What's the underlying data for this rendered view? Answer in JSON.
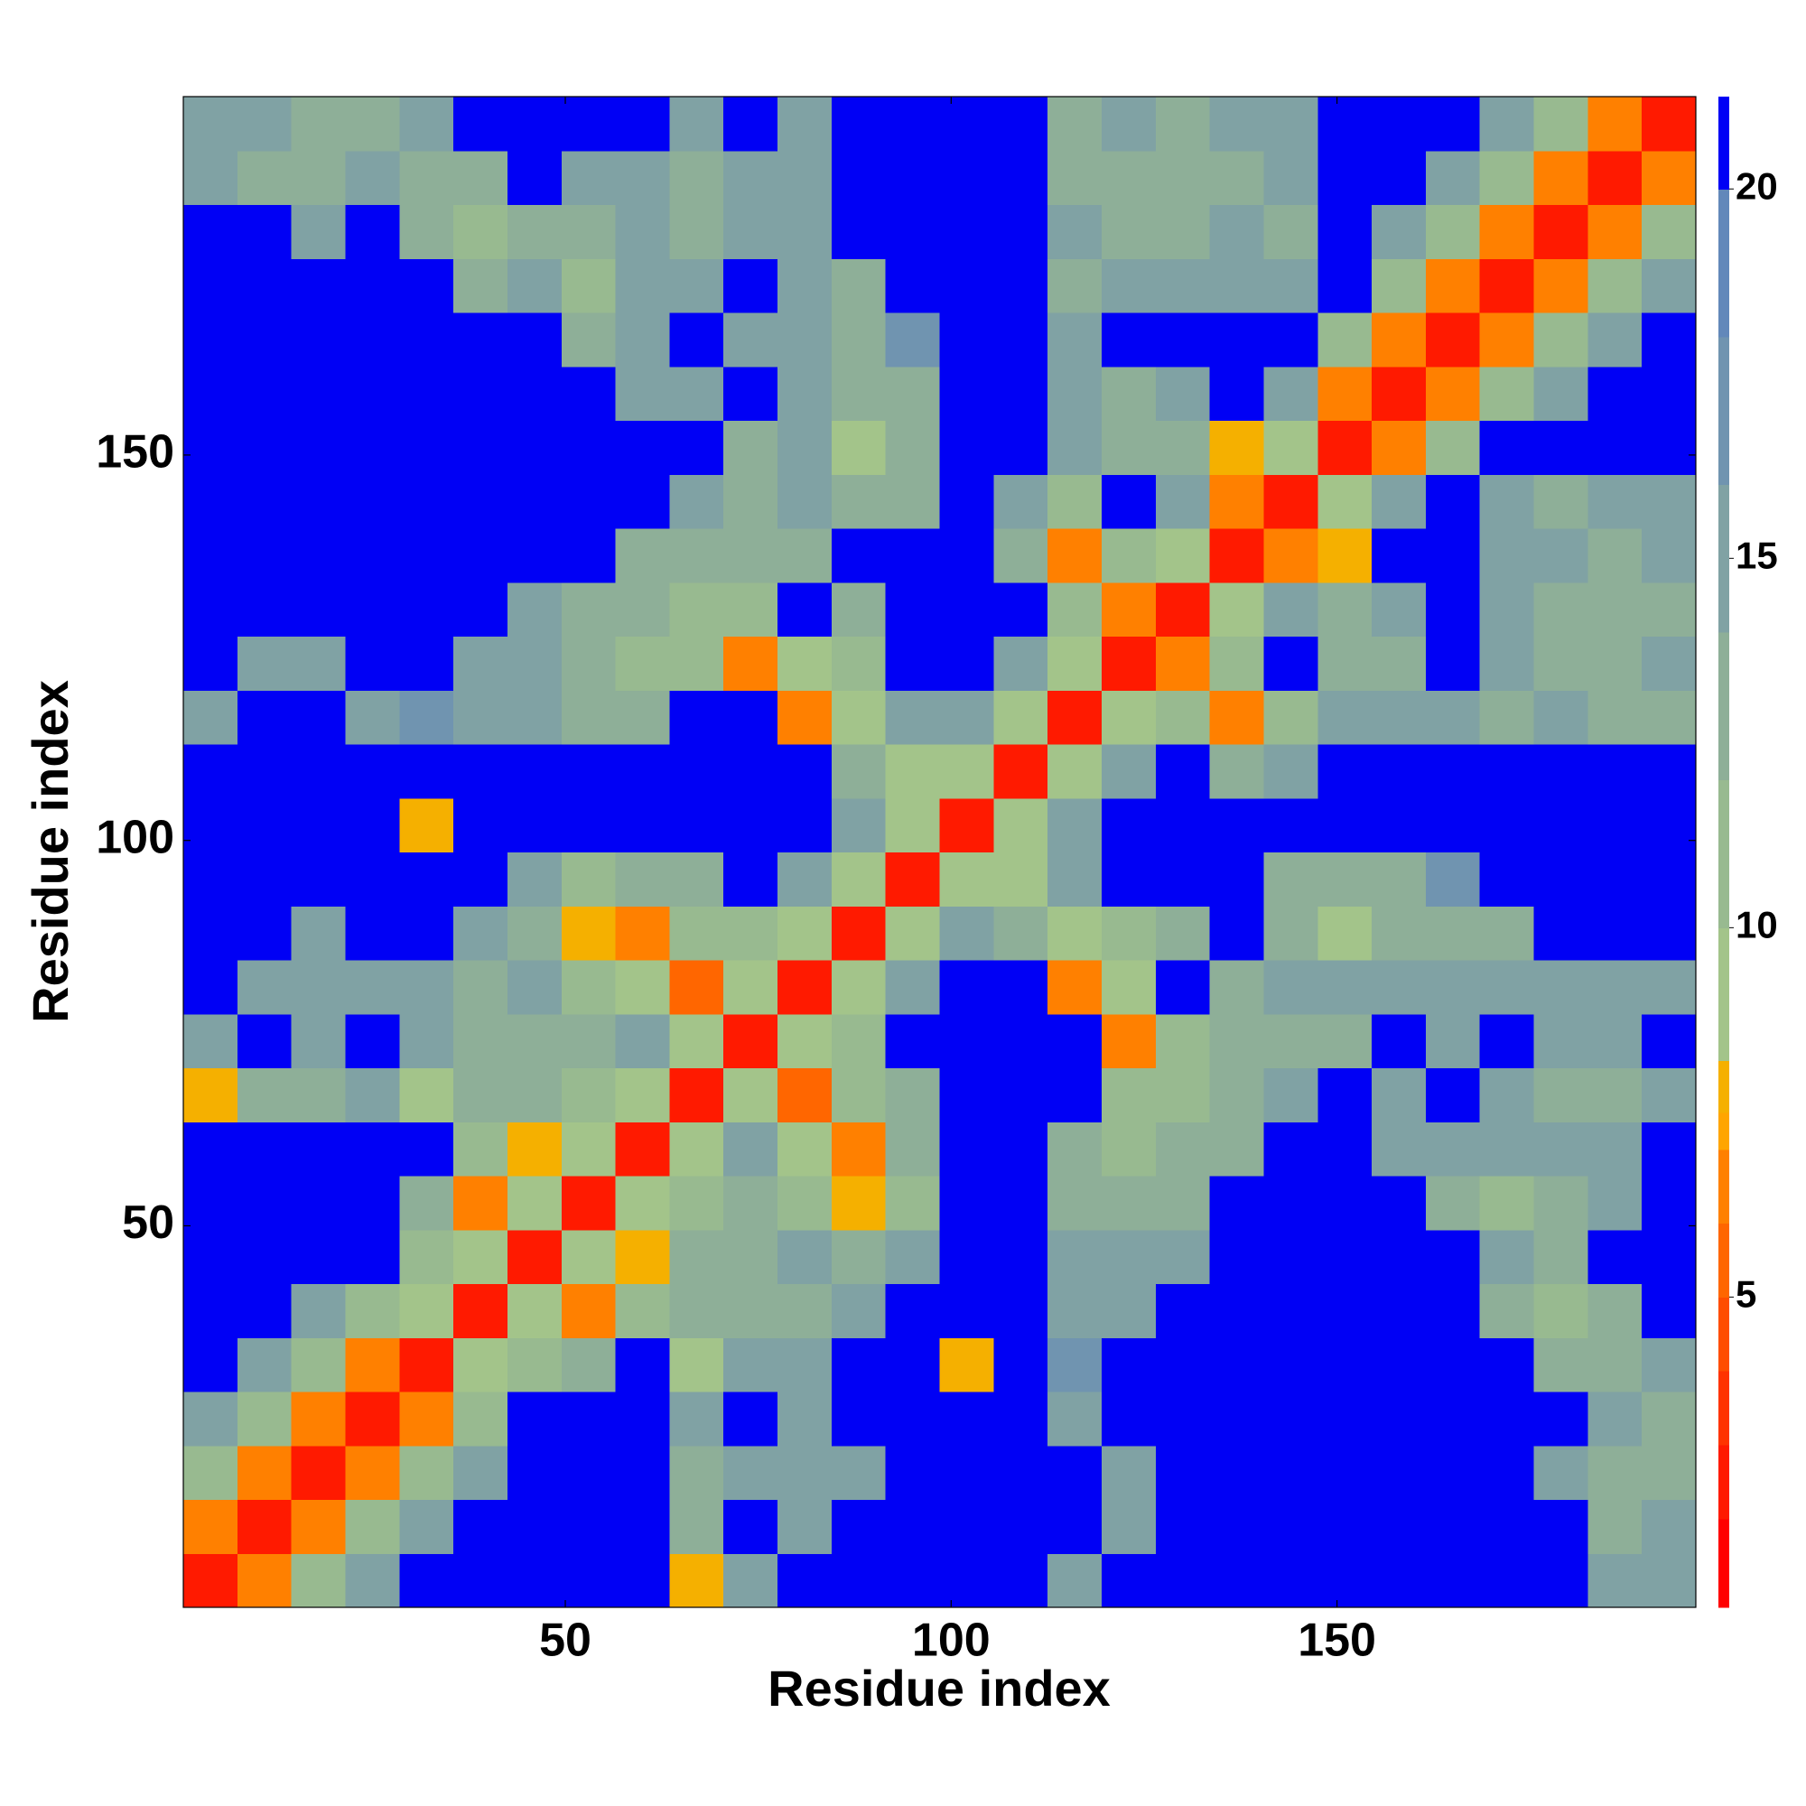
{
  "chart_data": {
    "type": "heatmap",
    "xlabel": "Residue index",
    "ylabel": "Residue index",
    "x": [
      4,
      11,
      18,
      25,
      32,
      39,
      46,
      53,
      60,
      67,
      74,
      81,
      88,
      95,
      102,
      109,
      116,
      123,
      130,
      137,
      144,
      151,
      158,
      165,
      172,
      179,
      186,
      193
    ],
    "y": [
      4,
      11,
      18,
      25,
      32,
      39,
      46,
      53,
      60,
      67,
      74,
      81,
      88,
      95,
      102,
      109,
      116,
      123,
      130,
      137,
      144,
      151,
      158,
      165,
      172,
      179,
      186,
      193
    ],
    "xlim": [
      0.5,
      196.5
    ],
    "ylim": [
      0.5,
      196.5
    ],
    "xticks": [
      50,
      100,
      150
    ],
    "yticks": [
      50,
      100,
      150
    ],
    "z": [
      [
        3,
        7,
        12,
        16,
        21,
        21,
        21,
        21,
        21,
        8,
        15,
        21,
        21,
        21,
        21,
        21,
        15,
        21,
        21,
        21,
        21,
        21,
        21,
        21,
        21,
        21,
        16,
        16
      ],
      [
        7,
        3,
        7,
        12,
        16,
        21,
        21,
        21,
        21,
        14,
        21,
        15,
        21,
        21,
        21,
        21,
        21,
        15,
        21,
        21,
        21,
        21,
        21,
        21,
        21,
        21,
        14,
        15
      ],
      [
        12,
        7,
        3,
        7,
        12,
        16,
        21,
        21,
        21,
        14,
        15,
        15,
        16,
        21,
        21,
        21,
        21,
        16,
        21,
        21,
        21,
        21,
        21,
        21,
        21,
        15,
        14,
        14
      ],
      [
        16,
        12,
        7,
        3,
        7,
        12,
        21,
        21,
        21,
        15,
        21,
        15,
        21,
        21,
        21,
        21,
        16,
        21,
        21,
        21,
        21,
        21,
        21,
        21,
        21,
        21,
        15,
        14
      ],
      [
        21,
        16,
        12,
        7,
        3,
        10,
        12,
        13,
        21,
        9,
        15,
        15,
        21,
        21,
        8,
        21,
        17,
        21,
        21,
        21,
        21,
        21,
        21,
        21,
        21,
        13,
        13,
        16
      ],
      [
        21,
        21,
        16,
        12,
        10,
        3,
        10,
        7,
        12,
        14,
        14,
        14,
        15,
        21,
        21,
        21,
        15,
        15,
        21,
        21,
        21,
        21,
        21,
        21,
        13,
        12,
        14,
        21
      ],
      [
        21,
        21,
        21,
        21,
        12,
        10,
        3,
        10,
        8,
        13,
        14,
        15,
        13,
        15,
        21,
        21,
        16,
        15,
        15,
        21,
        21,
        21,
        21,
        21,
        15,
        13,
        21,
        21
      ],
      [
        21,
        21,
        21,
        21,
        13,
        7,
        10,
        3,
        10,
        12,
        14,
        12,
        8,
        12,
        21,
        21,
        14,
        13,
        14,
        21,
        21,
        21,
        21,
        13,
        12,
        14,
        16,
        21
      ],
      [
        21,
        21,
        21,
        21,
        21,
        12,
        8,
        10,
        3,
        10,
        16,
        9,
        7,
        14,
        21,
        21,
        14,
        12,
        13,
        14,
        21,
        21,
        16,
        16,
        16,
        15,
        16,
        21
      ],
      [
        8,
        14,
        14,
        15,
        9,
        14,
        13,
        12,
        10,
        3,
        10,
        6,
        11,
        14,
        21,
        21,
        21,
        11,
        12,
        14,
        15,
        21,
        16,
        21,
        15,
        14,
        14,
        16
      ],
      [
        15,
        21,
        15,
        21,
        15,
        14,
        14,
        14,
        16,
        10,
        3,
        10,
        12,
        21,
        21,
        21,
        21,
        7,
        11,
        13,
        14,
        13,
        21,
        15,
        21,
        15,
        15,
        21
      ],
      [
        21,
        15,
        15,
        15,
        15,
        14,
        15,
        12,
        9,
        6,
        10,
        3,
        10,
        16,
        21,
        21,
        7,
        10,
        21,
        14,
        15,
        15,
        15,
        15,
        16,
        15,
        15,
        15
      ],
      [
        21,
        21,
        16,
        21,
        21,
        15,
        13,
        8,
        7,
        11,
        12,
        10,
        3,
        10,
        16,
        14,
        9,
        12,
        14,
        21,
        14,
        9,
        13,
        14,
        14,
        21,
        21,
        21
      ],
      [
        21,
        21,
        21,
        21,
        21,
        21,
        15,
        12,
        14,
        14,
        21,
        16,
        10,
        3,
        10,
        9,
        15,
        21,
        21,
        21,
        13,
        14,
        14,
        17,
        21,
        21,
        21,
        21
      ],
      [
        21,
        21,
        21,
        21,
        8,
        21,
        21,
        21,
        21,
        21,
        21,
        21,
        16,
        10,
        3,
        10,
        16,
        21,
        21,
        21,
        21,
        21,
        21,
        21,
        21,
        21,
        21,
        21
      ],
      [
        21,
        21,
        21,
        21,
        21,
        21,
        21,
        21,
        21,
        21,
        21,
        21,
        14,
        9,
        10,
        3,
        10,
        16,
        21,
        14,
        15,
        21,
        21,
        21,
        21,
        21,
        21,
        21
      ],
      [
        15,
        21,
        21,
        16,
        17,
        15,
        16,
        14,
        14,
        21,
        21,
        7,
        9,
        15,
        16,
        10,
        3,
        10,
        11,
        7,
        12,
        15,
        15,
        16,
        14,
        15,
        14,
        14
      ],
      [
        21,
        15,
        16,
        21,
        21,
        15,
        15,
        13,
        12,
        11,
        7,
        10,
        12,
        21,
        21,
        16,
        10,
        3,
        7,
        12,
        21,
        14,
        14,
        21,
        15,
        13,
        14,
        15
      ],
      [
        21,
        21,
        21,
        21,
        21,
        21,
        15,
        14,
        13,
        12,
        11,
        21,
        14,
        21,
        21,
        21,
        11,
        7,
        3,
        10,
        16,
        13,
        15,
        21,
        15,
        14,
        13,
        14
      ],
      [
        21,
        21,
        21,
        21,
        21,
        21,
        21,
        21,
        14,
        14,
        13,
        14,
        21,
        21,
        21,
        14,
        7,
        12,
        10,
        3,
        7,
        8,
        21,
        21,
        15,
        16,
        14,
        15
      ],
      [
        21,
        21,
        21,
        21,
        21,
        21,
        21,
        21,
        21,
        15,
        14,
        15,
        14,
        13,
        21,
        15,
        12,
        21,
        16,
        7,
        3,
        10,
        16,
        21,
        15,
        14,
        16,
        15
      ],
      [
        21,
        21,
        21,
        21,
        21,
        21,
        21,
        21,
        21,
        21,
        13,
        15,
        9,
        14,
        21,
        21,
        15,
        14,
        13,
        8,
        10,
        3,
        7,
        12,
        21,
        21,
        21,
        21
      ],
      [
        21,
        21,
        21,
        21,
        21,
        21,
        21,
        21,
        16,
        16,
        21,
        15,
        13,
        14,
        21,
        21,
        15,
        14,
        15,
        21,
        16,
        7,
        3,
        7,
        12,
        16,
        21,
        21
      ],
      [
        21,
        21,
        21,
        21,
        21,
        21,
        21,
        13,
        16,
        21,
        15,
        15,
        14,
        17,
        21,
        21,
        16,
        21,
        21,
        21,
        21,
        12,
        7,
        3,
        7,
        12,
        16,
        21
      ],
      [
        21,
        21,
        21,
        21,
        21,
        13,
        15,
        12,
        16,
        15,
        21,
        16,
        14,
        21,
        21,
        21,
        14,
        15,
        15,
        15,
        15,
        21,
        12,
        7,
        3,
        7,
        12,
        16
      ],
      [
        21,
        21,
        15,
        21,
        13,
        12,
        13,
        14,
        15,
        14,
        15,
        15,
        21,
        21,
        21,
        21,
        15,
        13,
        14,
        16,
        14,
        21,
        16,
        12,
        7,
        3,
        7,
        12
      ],
      [
        16,
        14,
        14,
        15,
        13,
        14,
        21,
        16,
        16,
        14,
        15,
        15,
        21,
        21,
        21,
        21,
        14,
        14,
        13,
        14,
        16,
        21,
        21,
        16,
        12,
        7,
        3,
        7
      ],
      [
        16,
        15,
        14,
        14,
        16,
        21,
        21,
        21,
        21,
        16,
        21,
        15,
        21,
        21,
        21,
        21,
        14,
        15,
        14,
        15,
        15,
        21,
        21,
        21,
        16,
        12,
        7,
        3
      ]
    ],
    "colorbar": {
      "levels": [
        0.8,
        2,
        3,
        4,
        5,
        6,
        7,
        7.5,
        8.2,
        10,
        12,
        14,
        16,
        18,
        20,
        21.25
      ],
      "colors": [
        "#ff0000",
        "#ff1a00",
        "#ff3300",
        "#ff4d00",
        "#ff6600",
        "#ff8000",
        "#ffa500",
        "#f5b000",
        "#a3c48a",
        "#98ba90",
        "#8eaf98",
        "#80a2a4",
        "#7094b0",
        "#6288ba",
        "#0000f5"
      ],
      "lim": [
        0.8,
        21.25
      ],
      "ticks": [
        5,
        10,
        15,
        20
      ]
    }
  }
}
